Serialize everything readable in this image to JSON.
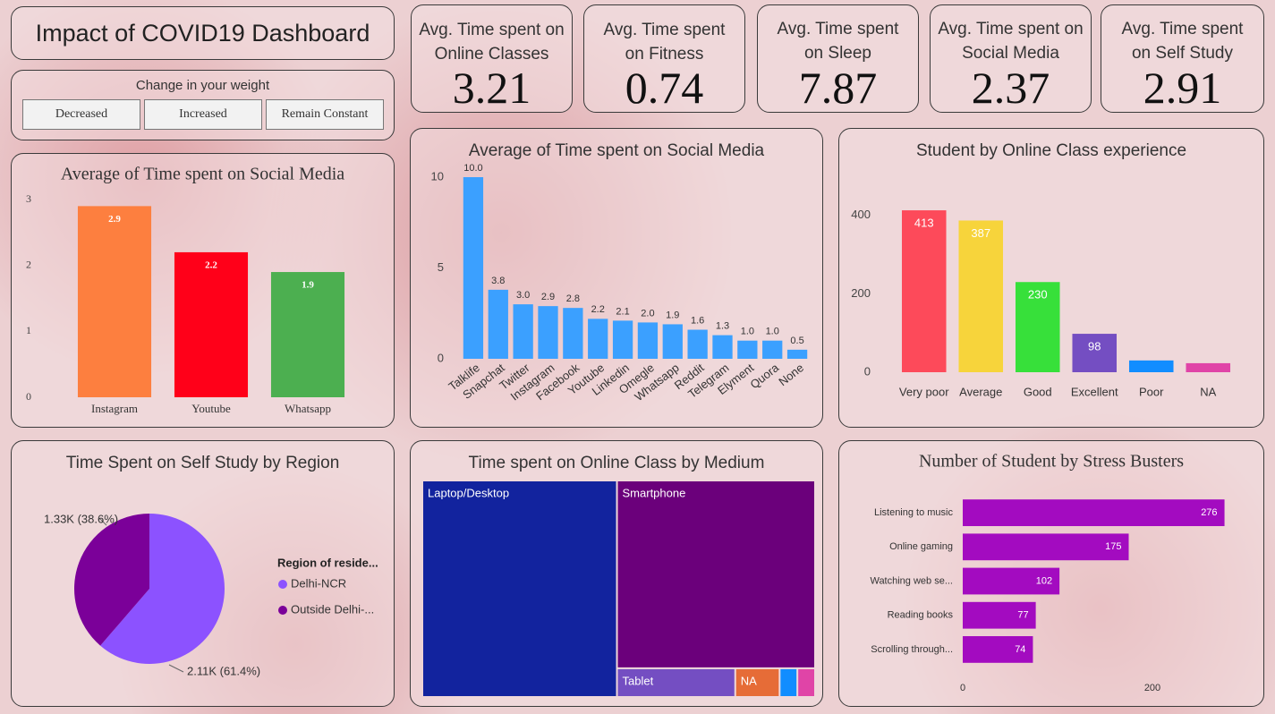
{
  "header": {
    "title": "Impact of COVID19 Dashboard"
  },
  "slicer": {
    "title": "Change in your weight",
    "options": [
      "Decreased",
      "Increased",
      "Remain Constant"
    ]
  },
  "kpis": [
    {
      "label": "Avg. Time spent on Online Classes",
      "value": 3.21
    },
    {
      "label": "Avg. Time spent on Fitness",
      "value": 0.74
    },
    {
      "label": "Avg. Time spent on Sleep",
      "value": 7.87
    },
    {
      "label": "Avg. Time spent on Social Media",
      "value": 2.37
    },
    {
      "label": "Avg. Time spent on Self Study",
      "value": 2.91
    }
  ],
  "chart_data": [
    {
      "type": "bar",
      "title": "Average of Time spent on Social Media",
      "categories": [
        "Instagram",
        "Youtube",
        "Whatsapp"
      ],
      "values": [
        2.9,
        2.2,
        1.9
      ],
      "colors": [
        "#fd7f3f",
        "#ff0019",
        "#4caf50"
      ],
      "ylim": [
        0,
        3
      ],
      "yticks": [
        0,
        1,
        2,
        3
      ]
    },
    {
      "type": "bar",
      "title": "Average of Time spent on Social Media",
      "categories": [
        "Talklife",
        "Snapchat",
        "Twitter",
        "Instagram",
        "Facebook",
        "Youtube",
        "Linkedin",
        "Omegle",
        "Whatsapp",
        "Reddit",
        "Telegram",
        "Elyment",
        "Quora",
        "None"
      ],
      "values": [
        10.0,
        3.8,
        3.0,
        2.9,
        2.8,
        2.2,
        2.1,
        2.0,
        1.9,
        1.6,
        1.3,
        1.0,
        1.0,
        0.5
      ],
      "value_labels": [
        "10.0",
        "3.8",
        "3.0",
        "2.9",
        "2.8",
        "2.2",
        "2.1",
        "2.0",
        "1.9",
        "1.6",
        "1.3",
        "1.0",
        "1.0",
        "0.5"
      ],
      "color": "#3ba0ff",
      "ylim": [
        0,
        10
      ],
      "yticks": [
        0,
        5,
        10
      ]
    },
    {
      "type": "bar",
      "title": "Student by Online Class experience",
      "categories": [
        "Very poor",
        "Average",
        "Good",
        "Excellent",
        "Poor",
        "NA"
      ],
      "values": [
        413,
        387,
        230,
        98,
        30,
        23
      ],
      "colors": [
        "#fd4a5a",
        "#f7d43b",
        "#37e03a",
        "#744ec2",
        "#118dff",
        "#e044a7"
      ],
      "ylim": [
        0,
        420
      ],
      "yticks": [
        0,
        200,
        400
      ]
    },
    {
      "type": "pie",
      "title": "Time Spent on Self Study by Region",
      "legend_title": "Region of reside...",
      "categories": [
        "Delhi-NCR",
        "Outside Delhi-..."
      ],
      "values": [
        2110,
        1330
      ],
      "value_labels": [
        "2.11K (61.4%)",
        "1.33K (38.6%)"
      ],
      "colors": [
        "#8c52ff",
        "#7b0099"
      ]
    },
    {
      "type": "treemap",
      "title": "Time spent on Online Class by Medium",
      "categories": [
        "Laptop/Desktop",
        "Smartphone",
        "Tablet",
        "NA",
        null,
        null
      ],
      "values": [
        496,
        438,
        40,
        15,
        6,
        6
      ],
      "colors": [
        "#12239e",
        "#6b007b",
        "#744ec2",
        "#e66c37",
        "#118dff",
        "#e044a7"
      ]
    },
    {
      "type": "hbar",
      "title": "Number of Student by Stress Busters",
      "categories": [
        "Listening to music",
        "Online gaming",
        "Watching web se...",
        "Reading books",
        "Scrolling through..."
      ],
      "values": [
        276,
        175,
        102,
        77,
        74
      ],
      "color": "#a30bc0",
      "xlim": [
        0,
        300
      ],
      "xticks": [
        0,
        200
      ]
    }
  ]
}
